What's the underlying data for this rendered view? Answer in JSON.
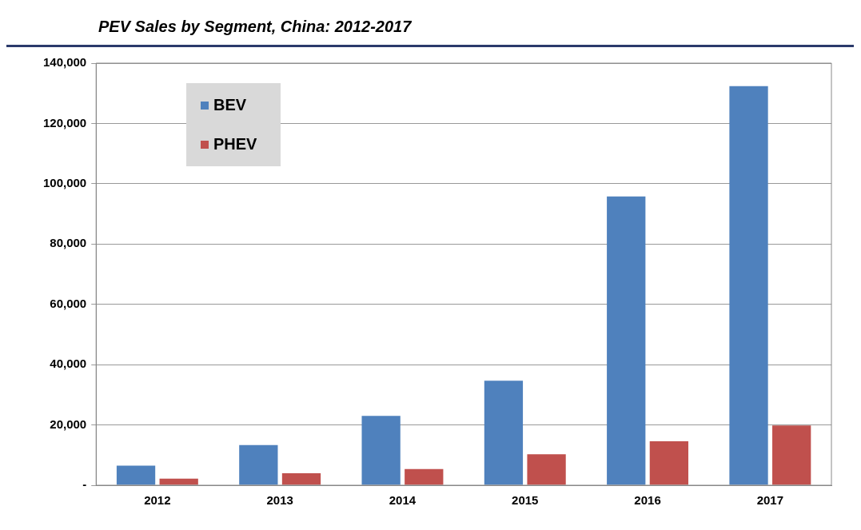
{
  "chart_data": {
    "type": "bar",
    "title": "PEV Sales by Segment, China: 2012-2017",
    "categories": [
      "2012",
      "2013",
      "2014",
      "2015",
      "2016",
      "2017"
    ],
    "series": [
      {
        "name": "BEV",
        "color": "#4f81bd",
        "values": [
          6500,
          13300,
          23000,
          34700,
          95800,
          132400
        ]
      },
      {
        "name": "PHEV",
        "color": "#c0504d",
        "values": [
          2200,
          4000,
          5400,
          10300,
          14600,
          19800
        ]
      }
    ],
    "ylim": [
      0,
      140000
    ],
    "yticks": [
      {
        "value": 0,
        "label": "-"
      },
      {
        "value": 20000,
        "label": "20,000"
      },
      {
        "value": 40000,
        "label": "40,000"
      },
      {
        "value": 60000,
        "label": "60,000"
      },
      {
        "value": 80000,
        "label": "80,000"
      },
      {
        "value": 100000,
        "label": "100,000"
      },
      {
        "value": 120000,
        "label": "120,000"
      },
      {
        "value": 140000,
        "label": "140,000"
      }
    ],
    "grid": "y",
    "legend": "top left"
  }
}
